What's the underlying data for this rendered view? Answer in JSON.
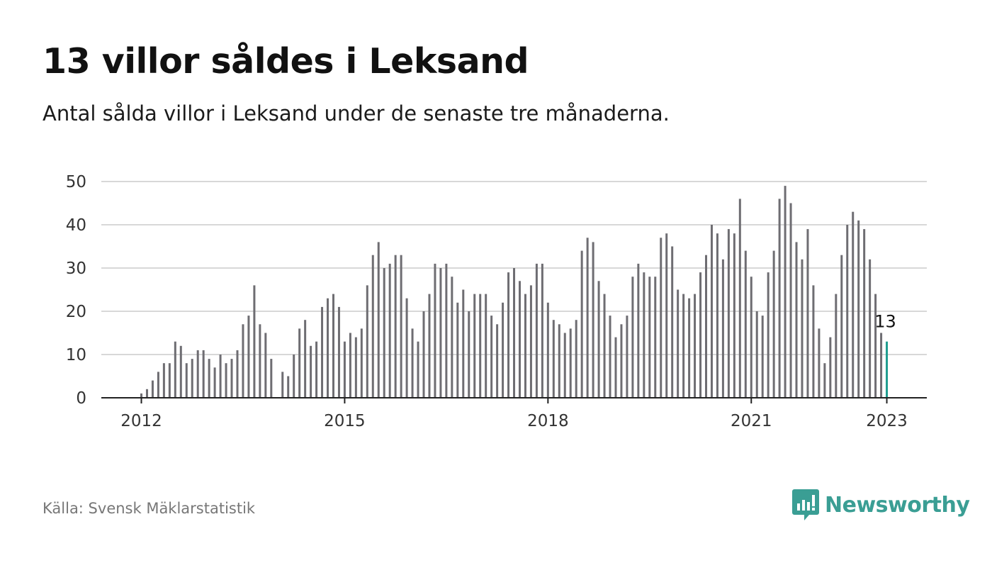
{
  "header": {
    "title": "13 villor såldes i Leksand",
    "subtitle": "Antal sålda villor i Leksand under de senaste tre månaderna."
  },
  "footer": {
    "source": "Källa: Svensk Mäklarstatistik",
    "brand": "Newsworthy",
    "brand_icon": "bar-chart-speech-bubble-icon"
  },
  "colors": {
    "bar": "#6e6d72",
    "highlight": "#1e9d8f",
    "grid": "#d8d8d8",
    "axis": "#222222",
    "brand": "#3a9e94"
  },
  "chart_data": {
    "type": "bar",
    "ylim": [
      0,
      50
    ],
    "yticks": [
      "0",
      "10",
      "20",
      "30",
      "40",
      "50"
    ],
    "xticks": [
      {
        "label": "2012",
        "month_index": 0
      },
      {
        "label": "2015",
        "month_index": 36
      },
      {
        "label": "2018",
        "month_index": 72
      },
      {
        "label": "2021",
        "month_index": 108
      },
      {
        "label": "2023",
        "month_index": 132
      }
    ],
    "grid": true,
    "highlight_label": "13",
    "values": [
      1,
      2,
      4,
      6,
      8,
      8,
      13,
      12,
      8,
      9,
      11,
      11,
      9,
      7,
      10,
      8,
      9,
      11,
      17,
      19,
      26,
      17,
      15,
      9,
      null,
      6,
      5,
      10,
      16,
      18,
      12,
      13,
      21,
      23,
      24,
      21,
      13,
      15,
      14,
      16,
      26,
      33,
      36,
      30,
      31,
      33,
      33,
      23,
      16,
      13,
      20,
      24,
      31,
      30,
      31,
      28,
      22,
      25,
      20,
      24,
      24,
      24,
      19,
      17,
      22,
      29,
      30,
      27,
      24,
      26,
      31,
      31,
      22,
      18,
      17,
      15,
      16,
      18,
      34,
      37,
      36,
      27,
      24,
      19,
      14,
      17,
      19,
      28,
      31,
      29,
      28,
      28,
      37,
      38,
      35,
      25,
      24,
      23,
      24,
      29,
      33,
      40,
      38,
      32,
      39,
      38,
      46,
      34,
      28,
      20,
      19,
      29,
      34,
      46,
      49,
      45,
      36,
      32,
      39,
      26,
      16,
      8,
      14,
      24,
      33,
      40,
      43,
      41,
      39,
      32,
      24,
      15,
      13
    ]
  }
}
